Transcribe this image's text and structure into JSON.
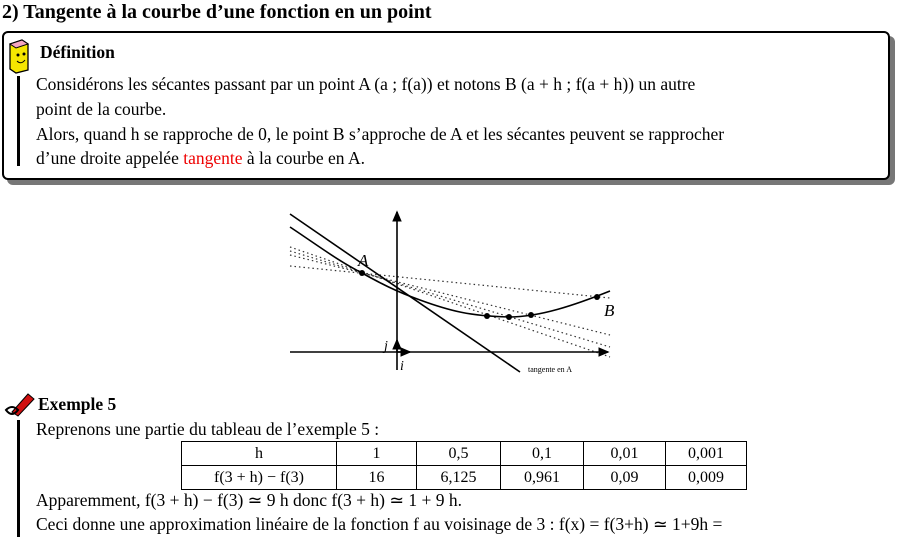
{
  "section_title": "2)  Tangente à la courbe d’une fonction en un point",
  "definition": {
    "heading": "Définition",
    "line1": "Considérons les sécantes passant par un point A (a ; f(a)) et notons B (a + h ; f(a + h)) un autre",
    "line2": "point de la courbe.",
    "line3": "Alors, quand h se rapproche de 0, le point B s’approche de A et les sécantes peuvent se rapprocher",
    "line4_before": "d’une droite appelée ",
    "line4_highlight": "tangente",
    "line4_after": " à la courbe en A.",
    "highlight_color": "#e00000"
  },
  "figure": {
    "label_a": "A",
    "label_b": "B",
    "label_i": "i⃗",
    "label_j": "j⃗",
    "tangent_label": "tangente en A"
  },
  "example": {
    "heading": "Exemple 5",
    "intro": "Reprenons une partie du tableau de l’exemple 5 :",
    "table": {
      "rows": [
        [
          "h",
          "1",
          "0,5",
          "0,1",
          "0,01",
          "0,001"
        ],
        [
          "f(3 + h) − f(3)",
          "16",
          "6,125",
          "0,961",
          "0,09",
          "0,009"
        ]
      ]
    },
    "line2": "Apparemment, f(3 + h) − f(3) ≃ 9 h donc f(3 + h) ≃ 1 + 9 h.",
    "line3": "Ceci donne une approximation linéaire de la fonction f au voisinage de 3 : f(x) = f(3+h) ≃ 1+9h ="
  }
}
